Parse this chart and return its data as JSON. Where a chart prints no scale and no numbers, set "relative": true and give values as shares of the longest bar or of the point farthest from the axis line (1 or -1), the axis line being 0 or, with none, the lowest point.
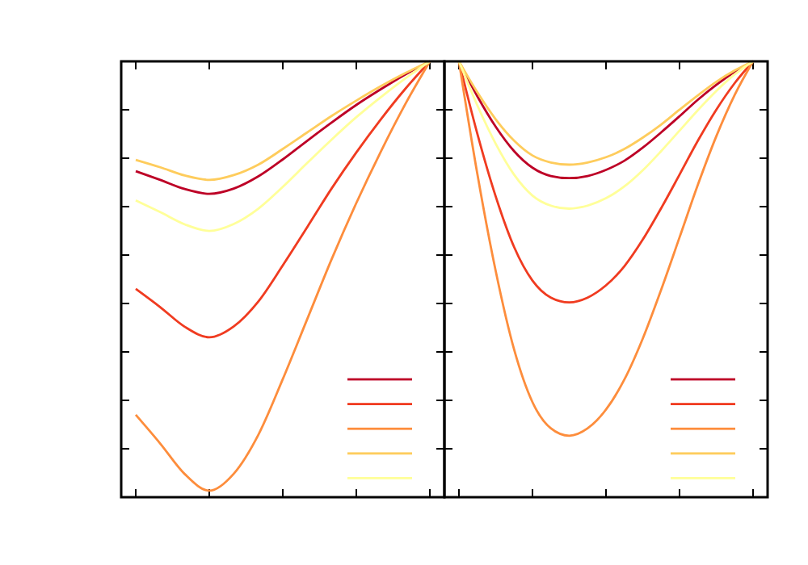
{
  "chart_data": [
    {
      "type": "line",
      "relative": true,
      "marker": "none",
      "line_style": "solid",
      "grid": false,
      "categories": [
        null,
        null,
        null,
        null,
        null,
        null,
        null,
        null,
        null,
        null,
        null,
        null,
        null
      ],
      "series": [
        {
          "color": "#bd0026",
          "values": [
            0.748,
            0.728,
            0.707,
            0.696,
            0.708,
            0.736,
            0.775,
            0.818,
            0.86,
            0.9,
            0.936,
            0.97,
            1
          ]
        },
        {
          "color": "#f03b20",
          "values": [
            0.478,
            0.436,
            0.391,
            0.367,
            0.392,
            0.449,
            0.532,
            0.62,
            0.709,
            0.791,
            0.867,
            0.937,
            1
          ]
        },
        {
          "color": "#fd8d3c",
          "values": [
            0.189,
            0.123,
            0.053,
            0.015,
            0.054,
            0.143,
            0.271,
            0.409,
            0.547,
            0.675,
            0.793,
            0.902,
            1
          ]
        },
        {
          "color": "#fecc5c",
          "values": [
            0.774,
            0.757,
            0.738,
            0.728,
            0.739,
            0.763,
            0.799,
            0.837,
            0.875,
            0.91,
            0.943,
            0.973,
            1
          ]
        },
        {
          "color": "#ffff99",
          "values": [
            0.681,
            0.654,
            0.626,
            0.611,
            0.627,
            0.662,
            0.712,
            0.767,
            0.821,
            0.872,
            0.918,
            0.961,
            1
          ]
        }
      ]
    },
    {
      "type": "line",
      "relative": true,
      "marker": "none",
      "line_style": "solid",
      "grid": false,
      "categories": [
        null,
        null,
        null,
        null,
        null,
        null,
        null,
        null,
        null,
        null,
        null,
        null,
        null,
        null,
        null,
        null,
        null
      ],
      "series": [
        {
          "color": "#bd0026",
          "values": [
            1,
            0.92,
            0.85,
            0.794,
            0.756,
            0.737,
            0.732,
            0.737,
            0.751,
            0.772,
            0.802,
            0.837,
            0.874,
            0.912,
            0.946,
            0.976,
            1
          ]
        },
        {
          "color": "#f03b20",
          "values": [
            1,
            0.834,
            0.69,
            0.574,
            0.497,
            0.458,
            0.447,
            0.458,
            0.486,
            0.53,
            0.591,
            0.663,
            0.74,
            0.818,
            0.889,
            0.95,
            1
          ]
        },
        {
          "color": "#fd8d3c",
          "values": [
            1,
            0.742,
            0.519,
            0.339,
            0.218,
            0.158,
            0.141,
            0.158,
            0.201,
            0.27,
            0.364,
            0.476,
            0.596,
            0.717,
            0.828,
            0.923,
            1
          ]
        },
        {
          "color": "#fecc5c",
          "values": [
            1,
            0.929,
            0.867,
            0.818,
            0.784,
            0.768,
            0.763,
            0.768,
            0.78,
            0.799,
            0.825,
            0.855,
            0.889,
            0.922,
            0.953,
            0.979,
            1
          ]
        },
        {
          "color": "#ffff99",
          "values": [
            1,
            0.899,
            0.811,
            0.74,
            0.692,
            0.669,
            0.662,
            0.669,
            0.686,
            0.713,
            0.75,
            0.794,
            0.841,
            0.888,
            0.932,
            0.97,
            1
          ]
        }
      ]
    }
  ]
}
